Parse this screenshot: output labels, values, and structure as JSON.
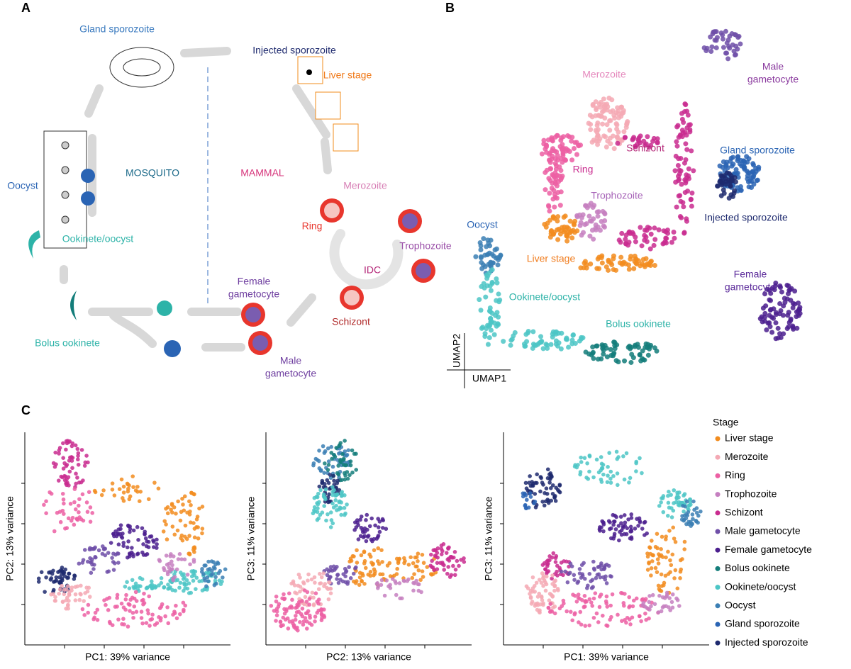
{
  "panels": [
    "A",
    "B",
    "C"
  ],
  "lifecycle": {
    "labels": [
      [
        "Gland sporozoite"
      ],
      [
        "Injected sporozoite"
      ],
      [
        "Liver stage"
      ],
      [
        "MOSQUITO"
      ],
      [
        "MAMMAL"
      ],
      [
        "Oocyst"
      ],
      [
        "Merozoite"
      ],
      [
        "Ring"
      ],
      [
        "Trophozoite"
      ],
      [
        "IDC"
      ],
      [
        "Ookinete/oocyst"
      ],
      [
        "Female",
        "gametocyte"
      ],
      [
        "Schizont"
      ],
      [
        "Bolus ookinete"
      ],
      [
        "Male",
        "gametocyte"
      ]
    ]
  },
  "umap": {
    "labels": [
      [
        "Merozoite"
      ],
      [
        "Male",
        "gametocyte"
      ],
      [
        "Schizont"
      ],
      [
        "Gland sporozoite"
      ],
      [
        "Ring"
      ],
      [
        "Trophozoite"
      ],
      [
        "Injected sporozoite"
      ],
      [
        "Oocyst"
      ],
      [
        "Liver stage"
      ],
      [
        "Ookinete/oocyst"
      ],
      [
        "Female",
        "gametocyte"
      ],
      [
        "Bolus ookinete"
      ]
    ],
    "axes": [
      "UMAP2",
      "UMAP1"
    ]
  },
  "pca": {
    "plots": [
      {
        "xlabel": "PC1: 39% variance",
        "ylabel": "PC2: 13% variance"
      },
      {
        "xlabel": "PC2: 13% variance",
        "ylabel": "PC3: 11% variance"
      },
      {
        "xlabel": "PC1: 39% variance",
        "ylabel": "PC3: 11% variance"
      }
    ]
  },
  "legend": {
    "title": "Stage",
    "items": [
      {
        "name": "Liver stage",
        "color": "#f28c1e"
      },
      {
        "name": "Merozoite",
        "color": "#f4a9b4"
      },
      {
        "name": "Ring",
        "color": "#ec5fa3"
      },
      {
        "name": "Trophozoite",
        "color": "#c57fc0"
      },
      {
        "name": "Schizont",
        "color": "#c92c8f"
      },
      {
        "name": "Male gametocyte",
        "color": "#6f4fa8"
      },
      {
        "name": "Female gametocyte",
        "color": "#4b1f8e"
      },
      {
        "name": "Bolus ookinete",
        "color": "#137d7a"
      },
      {
        "name": "Ookinete/oocyst",
        "color": "#4cc6c6"
      },
      {
        "name": "Oocyst",
        "color": "#3b7fb4"
      },
      {
        "name": "Gland sporozoite",
        "color": "#2a64b4"
      },
      {
        "name": "Injected sporozoite",
        "color": "#1e2a6e"
      }
    ]
  }
}
